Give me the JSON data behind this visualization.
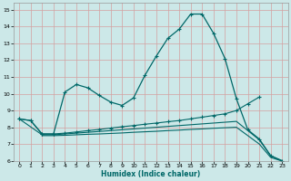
{
  "background_color": "#cce8e8",
  "grid_color": "#d4a0a0",
  "line_color": "#006868",
  "xlabel": "Humidex (Indice chaleur)",
  "xlim": [
    -0.5,
    23.5
  ],
  "ylim": [
    6,
    15.4
  ],
  "xticks": [
    0,
    1,
    2,
    3,
    4,
    5,
    6,
    7,
    8,
    9,
    10,
    11,
    12,
    13,
    14,
    15,
    16,
    17,
    18,
    19,
    20,
    21,
    22,
    23
  ],
  "yticks": [
    6,
    7,
    8,
    9,
    10,
    11,
    12,
    13,
    14,
    15
  ],
  "line1_x": [
    0,
    1,
    2,
    3,
    4,
    5,
    6,
    7,
    8,
    9,
    10,
    11,
    12,
    13,
    14,
    15,
    16,
    17,
    18,
    19,
    20,
    21,
    22,
    23
  ],
  "line1_y": [
    8.5,
    8.4,
    7.6,
    7.6,
    10.1,
    10.55,
    10.35,
    9.9,
    9.5,
    9.3,
    9.75,
    11.1,
    12.25,
    13.3,
    13.85,
    14.75,
    14.75,
    13.6,
    12.1,
    9.7,
    7.85,
    7.3,
    6.3,
    6.0
  ],
  "line2_x": [
    0,
    1,
    2,
    3,
    4,
    5,
    6,
    7,
    8,
    9,
    10,
    11,
    12,
    13,
    14,
    15,
    16,
    17,
    18,
    19,
    20,
    21
  ],
  "line2_y": [
    8.5,
    8.4,
    7.6,
    7.6,
    7.65,
    7.72,
    7.8,
    7.87,
    7.95,
    8.03,
    8.1,
    8.18,
    8.25,
    8.33,
    8.4,
    8.5,
    8.6,
    8.7,
    8.8,
    9.0,
    9.4,
    9.8
  ],
  "line3_x": [
    0,
    2,
    3,
    4,
    5,
    6,
    7,
    8,
    9,
    10,
    11,
    12,
    13,
    14,
    15,
    16,
    17,
    18,
    19,
    20,
    21,
    22,
    23
  ],
  "line3_y": [
    8.5,
    7.55,
    7.55,
    7.6,
    7.65,
    7.7,
    7.75,
    7.8,
    7.85,
    7.9,
    7.95,
    8.0,
    8.05,
    8.1,
    8.15,
    8.2,
    8.25,
    8.3,
    8.35,
    7.8,
    7.25,
    6.3,
    6.0
  ],
  "line4_x": [
    2,
    3,
    4,
    5,
    6,
    7,
    8,
    9,
    10,
    11,
    12,
    13,
    14,
    15,
    16,
    17,
    18,
    19,
    20,
    21,
    22,
    23
  ],
  "line4_y": [
    7.5,
    7.5,
    7.52,
    7.55,
    7.58,
    7.6,
    7.63,
    7.66,
    7.7,
    7.73,
    7.76,
    7.8,
    7.83,
    7.87,
    7.9,
    7.94,
    7.97,
    8.0,
    7.5,
    7.0,
    6.2,
    5.98
  ]
}
